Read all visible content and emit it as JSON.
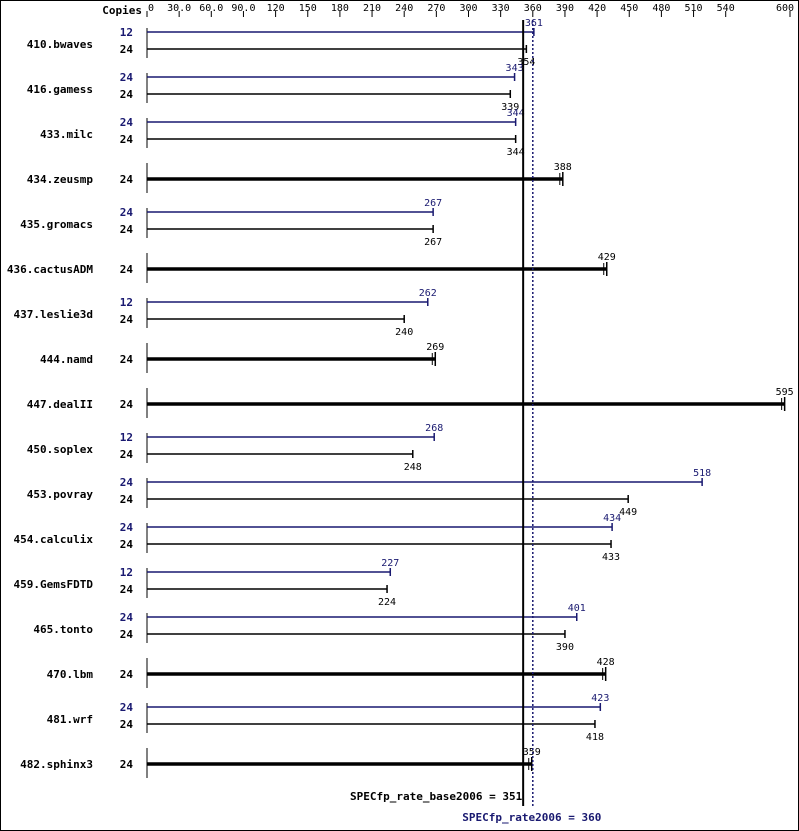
{
  "chart_data": {
    "type": "bar",
    "header_label": "Copies",
    "xlim": [
      0,
      600
    ],
    "ticks": [
      0,
      30.0,
      60.0,
      90.0,
      120,
      150,
      180,
      210,
      240,
      270,
      300,
      330,
      360,
      390,
      420,
      450,
      480,
      510,
      540,
      600
    ],
    "tick_labels": [
      "0",
      "30.0",
      "60.0",
      "90.0",
      "120",
      "150",
      "180",
      "210",
      "240",
      "270",
      "300",
      "330",
      "360",
      "390",
      "420",
      "450",
      "480",
      "510",
      "540",
      "600"
    ],
    "colors": {
      "base": "#000000",
      "peak": "#191970"
    },
    "benchmarks": [
      {
        "name": "410.bwaves",
        "peak": {
          "copies": "12",
          "value": 361,
          "label": "361"
        },
        "base": {
          "copies": "24",
          "value": 354,
          "label": "354"
        }
      },
      {
        "name": "416.gamess",
        "peak": {
          "copies": "24",
          "value": 343,
          "label": "343"
        },
        "base": {
          "copies": "24",
          "value": 339,
          "label": "339"
        }
      },
      {
        "name": "433.milc",
        "peak": {
          "copies": "24",
          "value": 344,
          "label": "344"
        },
        "base": {
          "copies": "24",
          "value": 344,
          "label": "344"
        }
      },
      {
        "name": "434.zeusmp",
        "combined": {
          "copies": "24",
          "value": 388,
          "label": "388"
        }
      },
      {
        "name": "435.gromacs",
        "peak": {
          "copies": "24",
          "value": 267,
          "label": "267"
        },
        "base": {
          "copies": "24",
          "value": 267,
          "label": "267"
        }
      },
      {
        "name": "436.cactusADM",
        "combined": {
          "copies": "24",
          "value": 429,
          "label": "429"
        }
      },
      {
        "name": "437.leslie3d",
        "peak": {
          "copies": "12",
          "value": 262,
          "label": "262"
        },
        "base": {
          "copies": "24",
          "value": 240,
          "label": "240"
        }
      },
      {
        "name": "444.namd",
        "combined": {
          "copies": "24",
          "value": 269,
          "label": "269"
        }
      },
      {
        "name": "447.dealII",
        "combined": {
          "copies": "24",
          "value": 595,
          "label": "595"
        }
      },
      {
        "name": "450.soplex",
        "peak": {
          "copies": "12",
          "value": 268,
          "label": "268"
        },
        "base": {
          "copies": "24",
          "value": 248,
          "label": "248"
        }
      },
      {
        "name": "453.povray",
        "peak": {
          "copies": "24",
          "value": 518,
          "label": "518"
        },
        "base": {
          "copies": "24",
          "value": 449,
          "label": "449"
        }
      },
      {
        "name": "454.calculix",
        "peak": {
          "copies": "24",
          "value": 434,
          "label": "434"
        },
        "base": {
          "copies": "24",
          "value": 433,
          "label": "433"
        }
      },
      {
        "name": "459.GemsFDTD",
        "peak": {
          "copies": "12",
          "value": 227,
          "label": "227"
        },
        "base": {
          "copies": "24",
          "value": 224,
          "label": "224"
        }
      },
      {
        "name": "465.tonto",
        "peak": {
          "copies": "24",
          "value": 401,
          "label": "401"
        },
        "base": {
          "copies": "24",
          "value": 390,
          "label": "390"
        }
      },
      {
        "name": "470.lbm",
        "combined": {
          "copies": "24",
          "value": 428,
          "label": "428"
        }
      },
      {
        "name": "481.wrf",
        "peak": {
          "copies": "24",
          "value": 423,
          "label": "423"
        },
        "base": {
          "copies": "24",
          "value": 418,
          "label": "418"
        }
      },
      {
        "name": "482.sphinx3",
        "combined": {
          "copies": "24",
          "value": 359,
          "label": "359"
        }
      }
    ],
    "summary": {
      "base": {
        "value": 351,
        "label": "SPECfp_rate_base2006 = 351"
      },
      "peak": {
        "value": 360,
        "label": "SPECfp_rate2006 = 360"
      }
    }
  }
}
